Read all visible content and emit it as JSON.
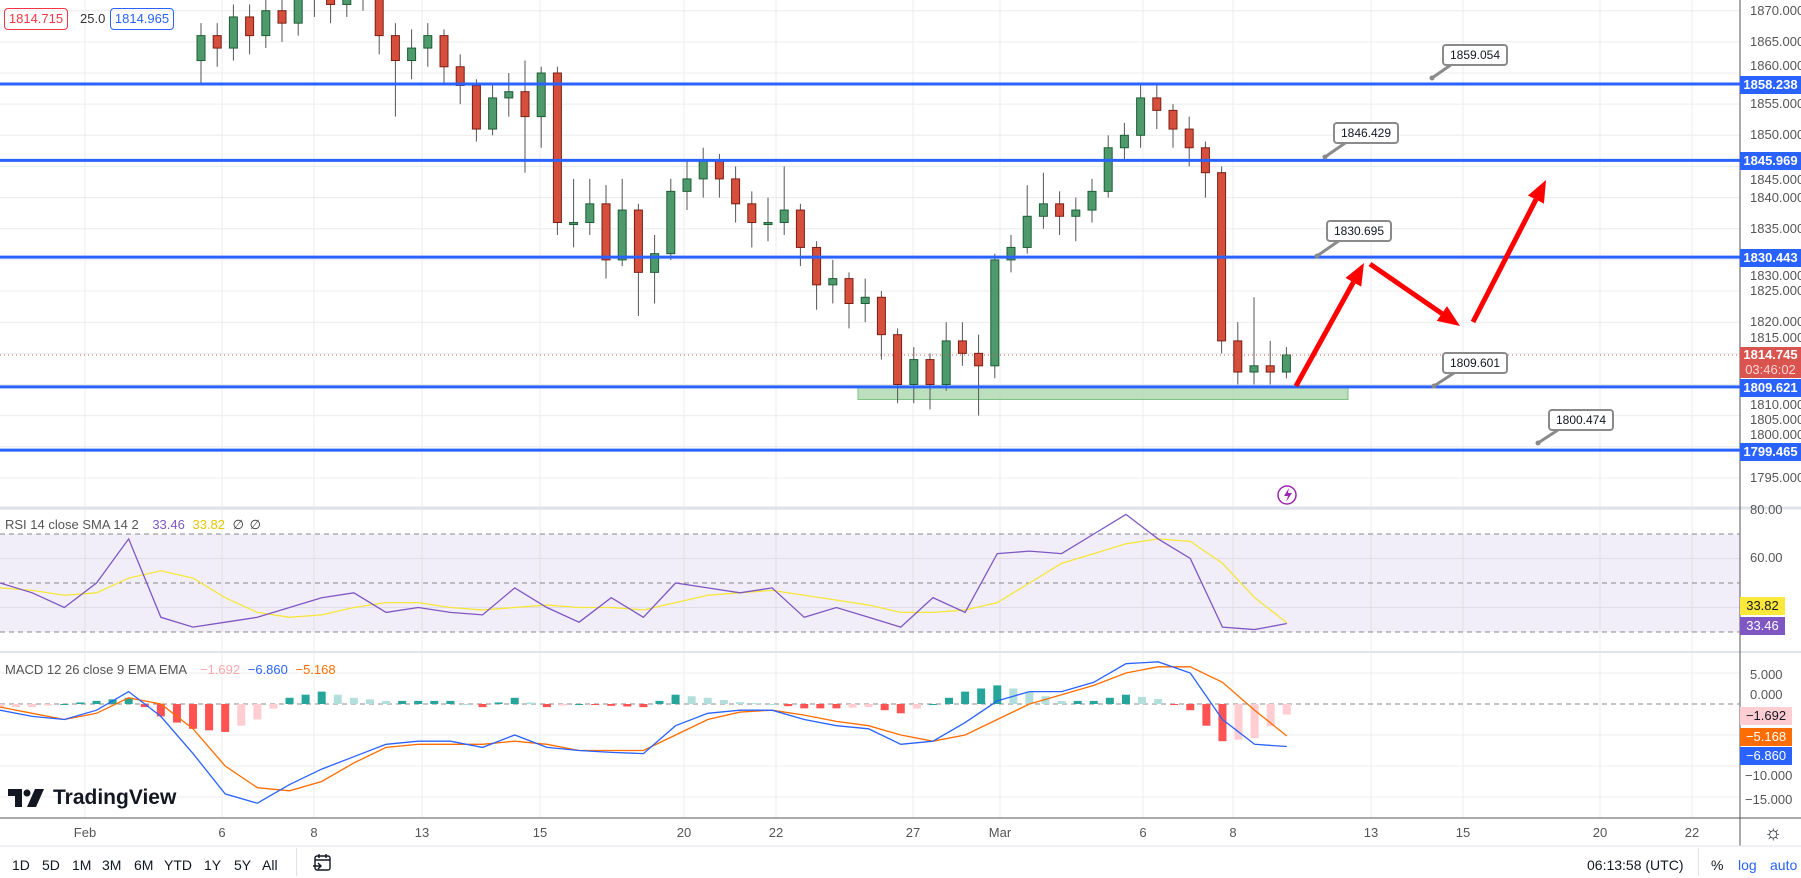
{
  "header": {
    "bid": "1814.715",
    "spread": "25.0",
    "ask": "1814.965"
  },
  "legends": {
    "rsi": {
      "title": "RSI 14 close SMA 14 2",
      "rsi_value": "33.46",
      "sma_value": "33.82",
      "extra1": "∅",
      "extra2": "∅"
    },
    "macd": {
      "title": "MACD 12 26 close 9 EMA EMA",
      "hist_value": "−1.692",
      "macd_value": "−6.860",
      "signal_value": "−5.168"
    }
  },
  "price_axis": {
    "ticks": [
      "1870.000",
      "1865.000",
      "1860.000",
      "1855.000",
      "1850.000",
      "1845.000",
      "1840.000",
      "1835.000",
      "1830.000",
      "1825.000",
      "1820.000",
      "1815.000",
      "1810.000",
      "1805.000",
      "1800.000",
      "1795.000"
    ],
    "level_labels": [
      "1858.238",
      "1845.969",
      "1830.443",
      "1809.621",
      "1799.465"
    ],
    "current_price": "1814.745",
    "countdown": "03:46:02"
  },
  "rsi_axis": {
    "ticks": [
      "80.00",
      "60.00"
    ],
    "sma_label": "33.82",
    "rsi_label": "33.46"
  },
  "macd_axis": {
    "ticks": [
      "5.000",
      "0.000",
      "−10.000",
      "−15.000"
    ],
    "hist_label": "−1.692",
    "signal_label": "−5.168",
    "macd_label": "−6.860"
  },
  "time_axis": {
    "labels": [
      "Feb",
      "6",
      "8",
      "13",
      "15",
      "20",
      "22",
      "27",
      "Mar",
      "6",
      "8",
      "13",
      "15",
      "20",
      "22"
    ]
  },
  "callouts": [
    "1859.054",
    "1846.429",
    "1830.695",
    "1809.601",
    "1800.474"
  ],
  "logo": "TradingView",
  "toolbar": {
    "ranges": [
      "1D",
      "5D",
      "1M",
      "3M",
      "6M",
      "YTD",
      "1Y",
      "5Y",
      "All"
    ],
    "clock": "06:13:58 (UTC)",
    "percent": "%",
    "log": "log",
    "auto": "auto"
  },
  "colors": {
    "level_line": "#2962ff",
    "up": "#4f9a6c",
    "down": "#d64f3c",
    "rsi": "#7e57c2",
    "rsi_sma": "#f5e63b",
    "macd": "#2962ff",
    "signal": "#ff6d00",
    "arrow": "#ff0000",
    "zone": "#a5d6a7"
  },
  "chart_data": [
    {
      "type": "candlestick",
      "title": "Price (4h candles)",
      "ylim": [
        1795,
        1870
      ],
      "format": "[open, high, low, close]",
      "candles": [
        [
          1862,
          1868,
          1858,
          1866
        ],
        [
          1866,
          1868,
          1861,
          1864
        ],
        [
          1864,
          1871,
          1862,
          1869
        ],
        [
          1869,
          1871,
          1863,
          1866
        ],
        [
          1866,
          1873,
          1864,
          1870
        ],
        [
          1870,
          1872,
          1865,
          1868
        ],
        [
          1868,
          1875,
          1866,
          1872
        ],
        [
          1872,
          1876,
          1869,
          1873
        ],
        [
          1873,
          1875,
          1868,
          1871
        ],
        [
          1871,
          1876,
          1869,
          1874
        ],
        [
          1874,
          1876,
          1870,
          1872
        ],
        [
          1872,
          1873,
          1863,
          1866
        ],
        [
          1866,
          1868,
          1853,
          1862
        ],
        [
          1862,
          1867,
          1859,
          1864
        ],
        [
          1864,
          1868,
          1861,
          1866
        ],
        [
          1866,
          1867,
          1858,
          1861
        ],
        [
          1861,
          1863,
          1855,
          1858
        ],
        [
          1858,
          1859,
          1849,
          1851
        ],
        [
          1851,
          1858,
          1850,
          1856
        ],
        [
          1856,
          1860,
          1853,
          1857
        ],
        [
          1857,
          1862,
          1844,
          1853
        ],
        [
          1853,
          1861,
          1848,
          1860
        ],
        [
          1860,
          1861,
          1834,
          1836
        ],
        [
          1836,
          1843,
          1832,
          1836
        ],
        [
          1836,
          1843,
          1834,
          1839
        ],
        [
          1839,
          1842,
          1827,
          1830
        ],
        [
          1830,
          1843,
          1829,
          1838
        ],
        [
          1838,
          1839,
          1821,
          1828
        ],
        [
          1828,
          1834,
          1823,
          1831
        ],
        [
          1831,
          1843,
          1830,
          1841
        ],
        [
          1841,
          1846,
          1838,
          1843
        ],
        [
          1843,
          1848,
          1840,
          1846
        ],
        [
          1846,
          1847,
          1840,
          1843
        ],
        [
          1843,
          1845,
          1836,
          1839
        ],
        [
          1839,
          1841,
          1832,
          1836
        ],
        [
          1836,
          1840,
          1833,
          1836
        ],
        [
          1836,
          1845,
          1834,
          1838
        ],
        [
          1838,
          1839,
          1829,
          1832
        ],
        [
          1832,
          1833,
          1822,
          1826
        ],
        [
          1826,
          1830,
          1823,
          1827
        ],
        [
          1827,
          1828,
          1819,
          1823
        ],
        [
          1823,
          1827,
          1820,
          1824
        ],
        [
          1824,
          1825,
          1814,
          1818
        ],
        [
          1818,
          1819,
          1807,
          1810
        ],
        [
          1810,
          1816,
          1807,
          1814
        ],
        [
          1814,
          1815,
          1806,
          1810
        ],
        [
          1810,
          1820,
          1809,
          1817
        ],
        [
          1817,
          1820,
          1813,
          1815
        ],
        [
          1815,
          1818,
          1805,
          1813
        ],
        [
          1813,
          1831,
          1811,
          1830
        ],
        [
          1830,
          1834,
          1828,
          1832
        ],
        [
          1832,
          1842,
          1831,
          1837
        ],
        [
          1837,
          1844,
          1835,
          1839
        ],
        [
          1839,
          1841,
          1834,
          1837
        ],
        [
          1837,
          1840,
          1833,
          1838
        ],
        [
          1838,
          1843,
          1836,
          1841
        ],
        [
          1841,
          1850,
          1840,
          1848
        ],
        [
          1848,
          1852,
          1846,
          1850
        ],
        [
          1850,
          1858,
          1848,
          1856
        ],
        [
          1856,
          1858,
          1851,
          1854
        ],
        [
          1854,
          1855,
          1848,
          1851
        ],
        [
          1851,
          1853,
          1845,
          1848
        ],
        [
          1848,
          1849,
          1840,
          1844
        ],
        [
          1844,
          1845,
          1815,
          1817
        ],
        [
          1817,
          1820,
          1810,
          1812
        ],
        [
          1812,
          1824,
          1810,
          1813
        ],
        [
          1813,
          1817,
          1810,
          1812
        ],
        [
          1812,
          1816,
          1811,
          1814.745
        ]
      ],
      "horizontal_levels": [
        1858.238,
        1845.969,
        1830.443,
        1809.621,
        1799.465
      ],
      "support_zone": [
        1807.6,
        1809.6
      ],
      "current_price": 1814.745
    },
    {
      "type": "line",
      "title": "RSI 14 close SMA 14",
      "ylim": [
        20,
        80
      ],
      "bands": [
        30,
        50,
        70
      ],
      "series": [
        {
          "name": "RSI",
          "values": [
            50,
            46,
            40,
            50,
            68,
            36,
            32,
            34,
            36,
            40,
            44,
            46,
            38,
            40,
            38,
            37,
            48,
            40,
            34,
            44,
            36,
            50,
            48,
            46,
            48,
            36,
            40,
            36,
            32,
            44,
            38,
            62,
            63,
            62,
            70,
            78,
            68,
            60,
            32,
            31,
            33.46
          ]
        },
        {
          "name": "SMA",
          "values": [
            48,
            47,
            45,
            46,
            52,
            55,
            52,
            44,
            38,
            36,
            37,
            40,
            42,
            42,
            40,
            39,
            40,
            41,
            40,
            40,
            39,
            42,
            45,
            46,
            47,
            45,
            43,
            41,
            38,
            38,
            39,
            42,
            50,
            58,
            62,
            66,
            68,
            67,
            58,
            44,
            33.82
          ]
        }
      ]
    },
    {
      "type": "line",
      "title": "MACD 12 26 close 9",
      "ylim": [
        -17,
        8
      ],
      "series": [
        {
          "name": "MACD",
          "values": [
            -1,
            -2,
            -2.5,
            -1,
            2,
            -2,
            -8,
            -14.5,
            -16,
            -13,
            -10.5,
            -8.5,
            -6.5,
            -6,
            -6,
            -7,
            -5,
            -7,
            -7.5,
            -7.8,
            -8,
            -3.5,
            -1.5,
            -1,
            -1,
            -2.5,
            -3.5,
            -4,
            -6.5,
            -6,
            -3,
            0.5,
            2,
            2,
            3.5,
            6.5,
            6.8,
            5,
            -2.5,
            -6.5,
            -6.86
          ]
        },
        {
          "name": "Signal",
          "values": [
            -0.5,
            -1.5,
            -2.5,
            -1.5,
            1,
            0,
            -4,
            -10,
            -13.5,
            -14,
            -12.5,
            -9.5,
            -7,
            -6.5,
            -6.5,
            -6.5,
            -6,
            -6.5,
            -7.5,
            -7.5,
            -7.5,
            -5,
            -2.5,
            -1.3,
            -1,
            -1.8,
            -2.8,
            -3.5,
            -5,
            -6,
            -5,
            -2.5,
            0,
            1.5,
            3,
            5,
            6,
            6,
            3.5,
            -1,
            -5.168
          ]
        }
      ],
      "histogram": "MACD − Signal"
    }
  ]
}
